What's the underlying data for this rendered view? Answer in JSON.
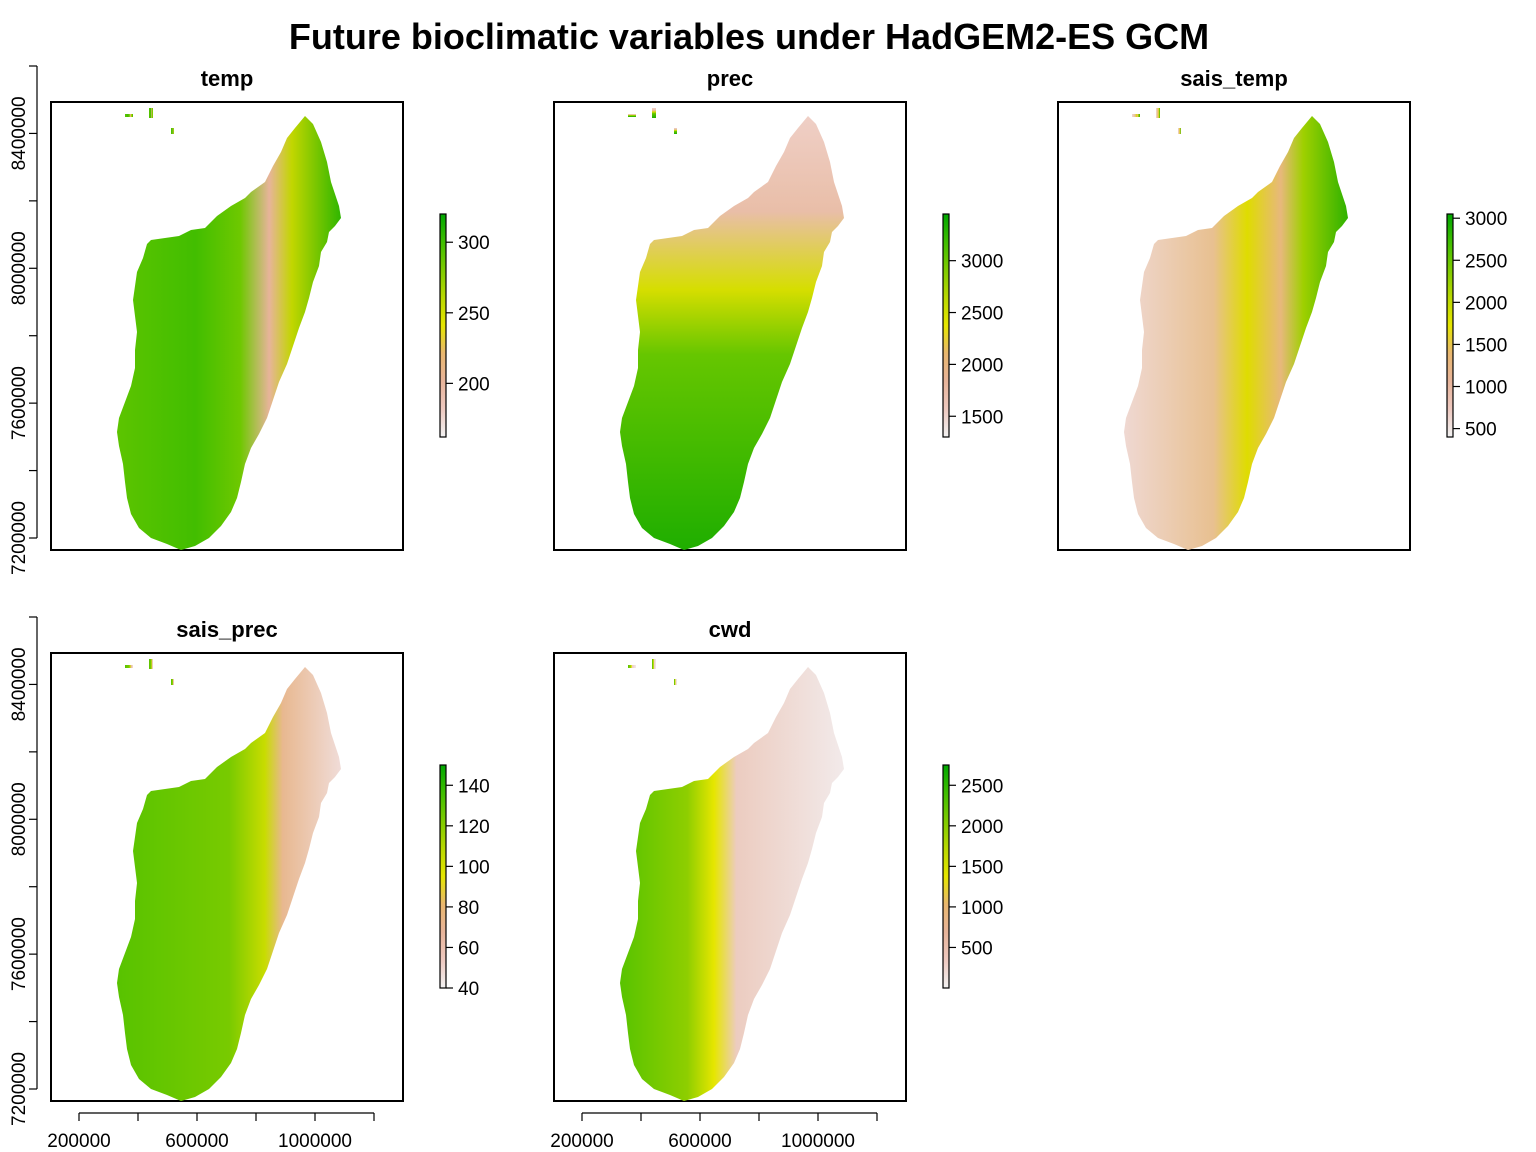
{
  "title": "Future bioclimatic variables under HadGEM2-ES GCM",
  "colors": {
    "ramp": [
      "#f2f2f2",
      "#eec9c0",
      "#e7b49a",
      "#e9b76f",
      "#e6e600",
      "#b9d800",
      "#7ecb00",
      "#3fbe00",
      "#00a600"
    ],
    "frame": "#000000"
  },
  "x_axis_ticks": [
    200000,
    400000,
    600000,
    800000,
    1000000,
    1200000
  ],
  "x_axis_labels": [
    "200000",
    "600000",
    "1000000"
  ],
  "y_axis_ticks": [
    7200000,
    7400000,
    7600000,
    7800000,
    8000000,
    8200000,
    8400000,
    8600000
  ],
  "y_axis_labels": [
    "7200000",
    "7600000",
    "8000000",
    "8400000"
  ],
  "panels": [
    {
      "id": "temp",
      "title": "temp",
      "legend_ticks": [
        "200",
        "250",
        "300"
      ],
      "legend_values": [
        200,
        250,
        300
      ],
      "legend_range": [
        162,
        320
      ]
    },
    {
      "id": "prec",
      "title": "prec",
      "legend_ticks": [
        "1500",
        "2000",
        "2500",
        "3000"
      ],
      "legend_values": [
        1500,
        2000,
        2500,
        3000
      ],
      "legend_range": [
        1300,
        3450
      ]
    },
    {
      "id": "sais_temp",
      "title": "sais_temp",
      "legend_ticks": [
        "500",
        "1000",
        "1500",
        "2000",
        "2500",
        "3000"
      ],
      "legend_values": [
        500,
        1000,
        1500,
        2000,
        2500,
        3000
      ],
      "legend_range": [
        400,
        3050
      ]
    },
    {
      "id": "sais_prec",
      "title": "sais_prec",
      "legend_ticks": [
        "40",
        "60",
        "80",
        "100",
        "120",
        "140"
      ],
      "legend_values": [
        40,
        60,
        80,
        100,
        120,
        140
      ],
      "legend_range": [
        40,
        150
      ]
    },
    {
      "id": "cwd",
      "title": "cwd",
      "legend_ticks": [
        "500",
        "1000",
        "1500",
        "2000",
        "2500"
      ],
      "legend_values": [
        500,
        1000,
        1500,
        2000,
        2500
      ],
      "legend_range": [
        0,
        2750
      ]
    }
  ]
}
